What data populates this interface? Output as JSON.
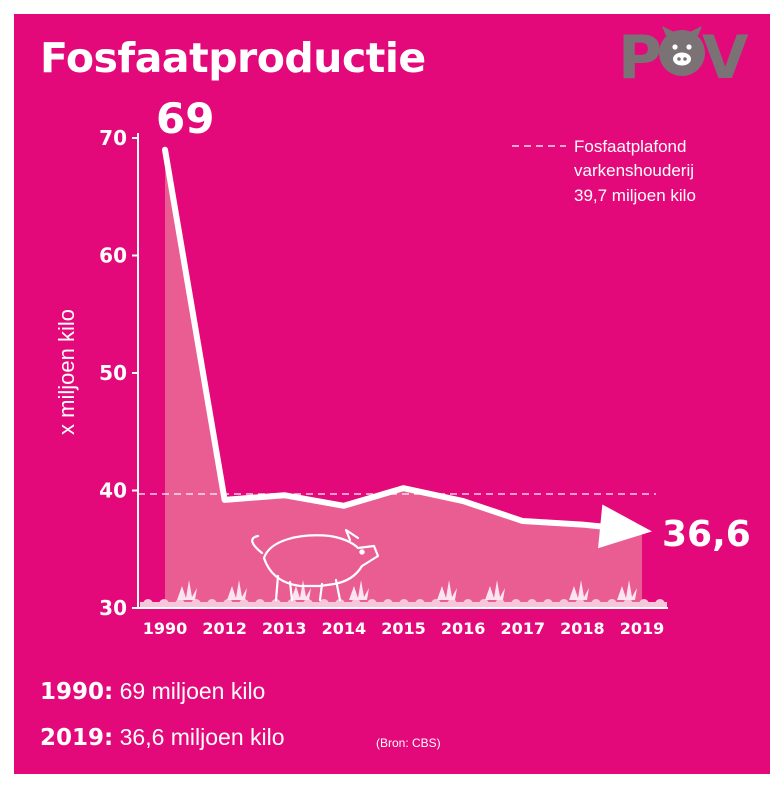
{
  "title": "Fosfaatproductie",
  "logo": {
    "text": "POV",
    "icon": "pig-face-icon",
    "color": "#7a7274"
  },
  "colors": {
    "background": "#e4097a",
    "line": "#ffffff",
    "area": "#e95d93",
    "ground": "#f6c6da"
  },
  "chart_data": {
    "type": "line",
    "title": "Fosfaatproductie",
    "xlabel": "",
    "ylabel": "x miljoen kilo",
    "categories": [
      "1990",
      "2012",
      "2013",
      "2014",
      "2015",
      "2016",
      "2017",
      "2018",
      "2019"
    ],
    "series": [
      {
        "values": [
          69,
          39.2,
          39.6,
          38.7,
          40.2,
          39.1,
          37.4,
          37.1,
          36.6
        ]
      }
    ],
    "ylim": [
      30,
      70
    ],
    "yticks": [
      30,
      40,
      50,
      60,
      70
    ],
    "grid": false,
    "reference_line": {
      "value": 39.7,
      "label_lines": [
        "Fosfaatplafond",
        "varkenshouderij",
        "39,7 miljoen kilo"
      ]
    },
    "annotations": {
      "start": "69",
      "end": "36,6"
    },
    "legend": "top-right"
  },
  "footer": {
    "line1": {
      "year": "1990:",
      "text": "69 miljoen kilo"
    },
    "line2": {
      "year": "2019:",
      "text": "36,6 miljoen kilo"
    },
    "source": "(Bron: CBS)"
  }
}
